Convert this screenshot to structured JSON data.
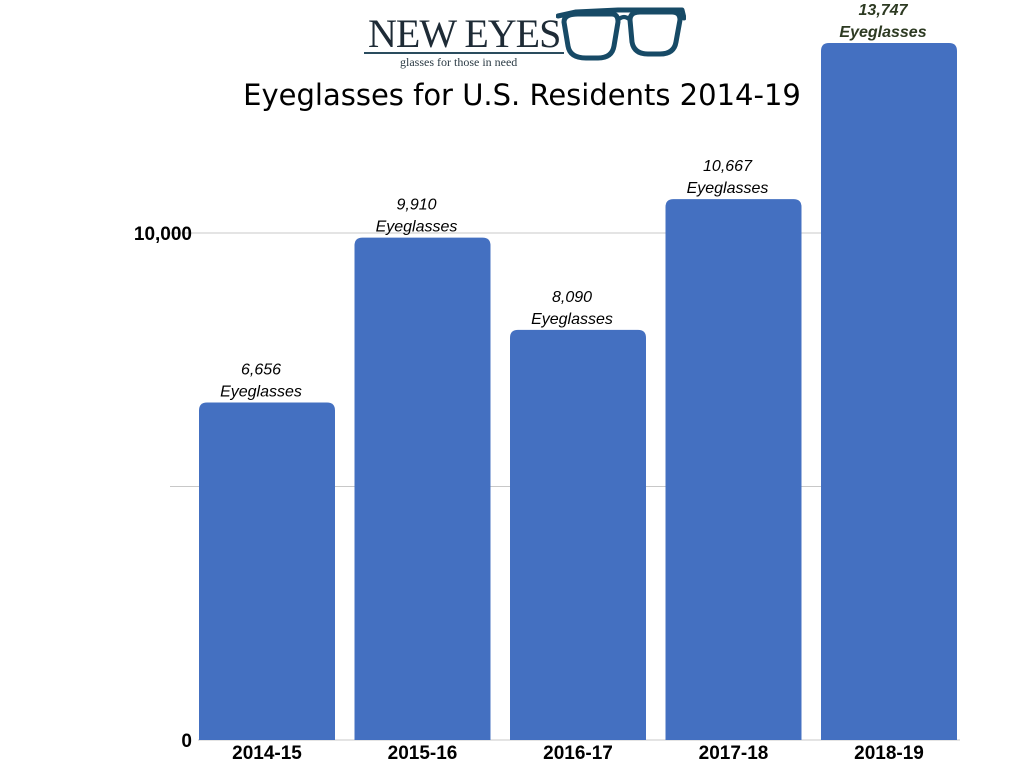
{
  "logo": {
    "wordmark": "NEW EYES",
    "tagline": "glasses for those in need"
  },
  "colors": {
    "bar": "#4470c1",
    "gridline": "#c8c8c8",
    "logo_frame": "#174a66"
  },
  "chart_data": {
    "type": "bar",
    "title": "Eyeglasses for U.S. Residents 2014-19",
    "xlabel": "",
    "ylabel": "",
    "categories": [
      "2014-15",
      "2015-16",
      "2016-17",
      "2017-18",
      "2018-19"
    ],
    "values": [
      6656,
      9910,
      8090,
      10667,
      13747
    ],
    "value_labels": [
      "6,656",
      "9,910",
      "8,090",
      "10,667",
      "13,747"
    ],
    "unit_label": "Eyeglasses",
    "ylim": [
      0,
      14500
    ],
    "yticks": [
      {
        "value": 0,
        "label": "0"
      },
      {
        "value": 10000,
        "label": "10,000"
      }
    ],
    "gridlines": [
      5000,
      10000
    ],
    "grid": true,
    "legend": "none"
  }
}
